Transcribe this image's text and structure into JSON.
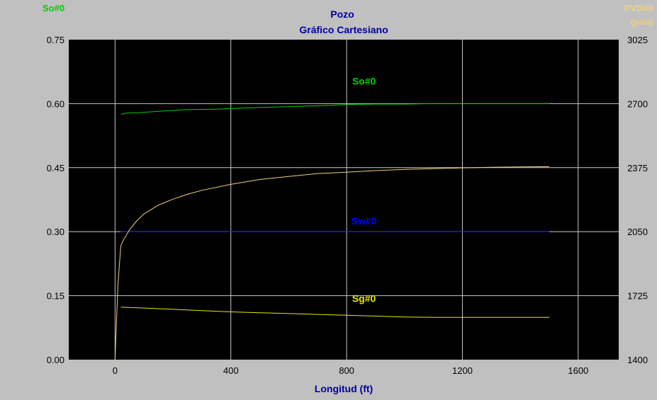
{
  "chart_data": {
    "type": "line",
    "title": "Pozo",
    "subtitle": "Gráfico Cartesiano",
    "xlabel": "Longitud (ft)",
    "left_axis_label": "So#0",
    "right_axis_label": "PVD#0",
    "right_axis_unit": "(psia)",
    "xlim": [
      -160,
      1740
    ],
    "ylim_left": [
      0.0,
      0.75
    ],
    "ylim_right": [
      1400,
      3025
    ],
    "x_ticks": [
      "0",
      "400",
      "800",
      "1200",
      "1600"
    ],
    "x_tick_values": [
      0,
      400,
      800,
      1200,
      1600
    ],
    "y_left_ticks": [
      "0.00",
      "0.15",
      "0.30",
      "0.45",
      "0.60",
      "0.75"
    ],
    "y_left_tick_values": [
      0.0,
      0.15,
      0.3,
      0.45,
      0.6,
      0.75
    ],
    "y_right_ticks": [
      "1400",
      "1725",
      "2050",
      "2375",
      "2700",
      "3025"
    ],
    "y_right_tick_values": [
      1400,
      1725,
      2050,
      2375,
      2700,
      3025
    ],
    "grid": true,
    "colors": {
      "background": "#c0c0c0",
      "plot_bg": "#000000",
      "grid": "#c8c8c8",
      "title": "#0000a0",
      "so": "#00d000",
      "sw": "#0000ff",
      "sg": "#e8e800",
      "pressure": "#f0d080"
    },
    "series": [
      {
        "name": "So#0",
        "axis": "left",
        "color": "#00d000",
        "x": [
          20,
          40,
          80,
          150,
          250,
          350,
          450,
          550,
          650,
          750,
          800,
          900,
          1000,
          1100,
          1200,
          1300,
          1400,
          1500
        ],
        "y": [
          0.575,
          0.578,
          0.579,
          0.582,
          0.586,
          0.587,
          0.59,
          0.592,
          0.594,
          0.596,
          0.598,
          0.599,
          0.599,
          0.6,
          0.6,
          0.6,
          0.6,
          0.6
        ]
      },
      {
        "name": "Sw#0",
        "axis": "left",
        "color": "#0000ff",
        "x": [
          20,
          1500
        ],
        "y": [
          0.3,
          0.3
        ]
      },
      {
        "name": "Sg#0",
        "axis": "left",
        "color": "#e8e800",
        "x": [
          20,
          100,
          200,
          300,
          400,
          500,
          600,
          700,
          800,
          900,
          1000,
          1100,
          1200,
          1300,
          1400,
          1500
        ],
        "y": [
          0.123,
          0.121,
          0.118,
          0.115,
          0.112,
          0.11,
          0.108,
          0.106,
          0.104,
          0.102,
          0.1,
          0.099,
          0.099,
          0.099,
          0.099,
          0.099
        ]
      },
      {
        "name": "PVD#0",
        "axis": "right",
        "color": "#f0d080",
        "x": [
          0,
          10,
          20,
          30,
          50,
          75,
          100,
          150,
          200,
          250,
          300,
          400,
          500,
          600,
          700,
          800,
          900,
          1000,
          1100,
          1200,
          1300,
          1400,
          1500
        ],
        "y": [
          1400,
          1780,
          1980,
          2010,
          2060,
          2105,
          2140,
          2185,
          2215,
          2240,
          2260,
          2290,
          2315,
          2330,
          2345,
          2352,
          2360,
          2366,
          2370,
          2374,
          2377,
          2379,
          2380
        ]
      }
    ],
    "series_labels": [
      {
        "text": "So#0",
        "x": 860,
        "y": 0.645,
        "axis": "left",
        "color": "#00d000"
      },
      {
        "text": "Sw#0",
        "x": 860,
        "y": 0.317,
        "axis": "left",
        "color": "#0000ff"
      },
      {
        "text": "Sg#0",
        "x": 860,
        "y": 0.135,
        "axis": "left",
        "color": "#e8e800"
      }
    ]
  }
}
